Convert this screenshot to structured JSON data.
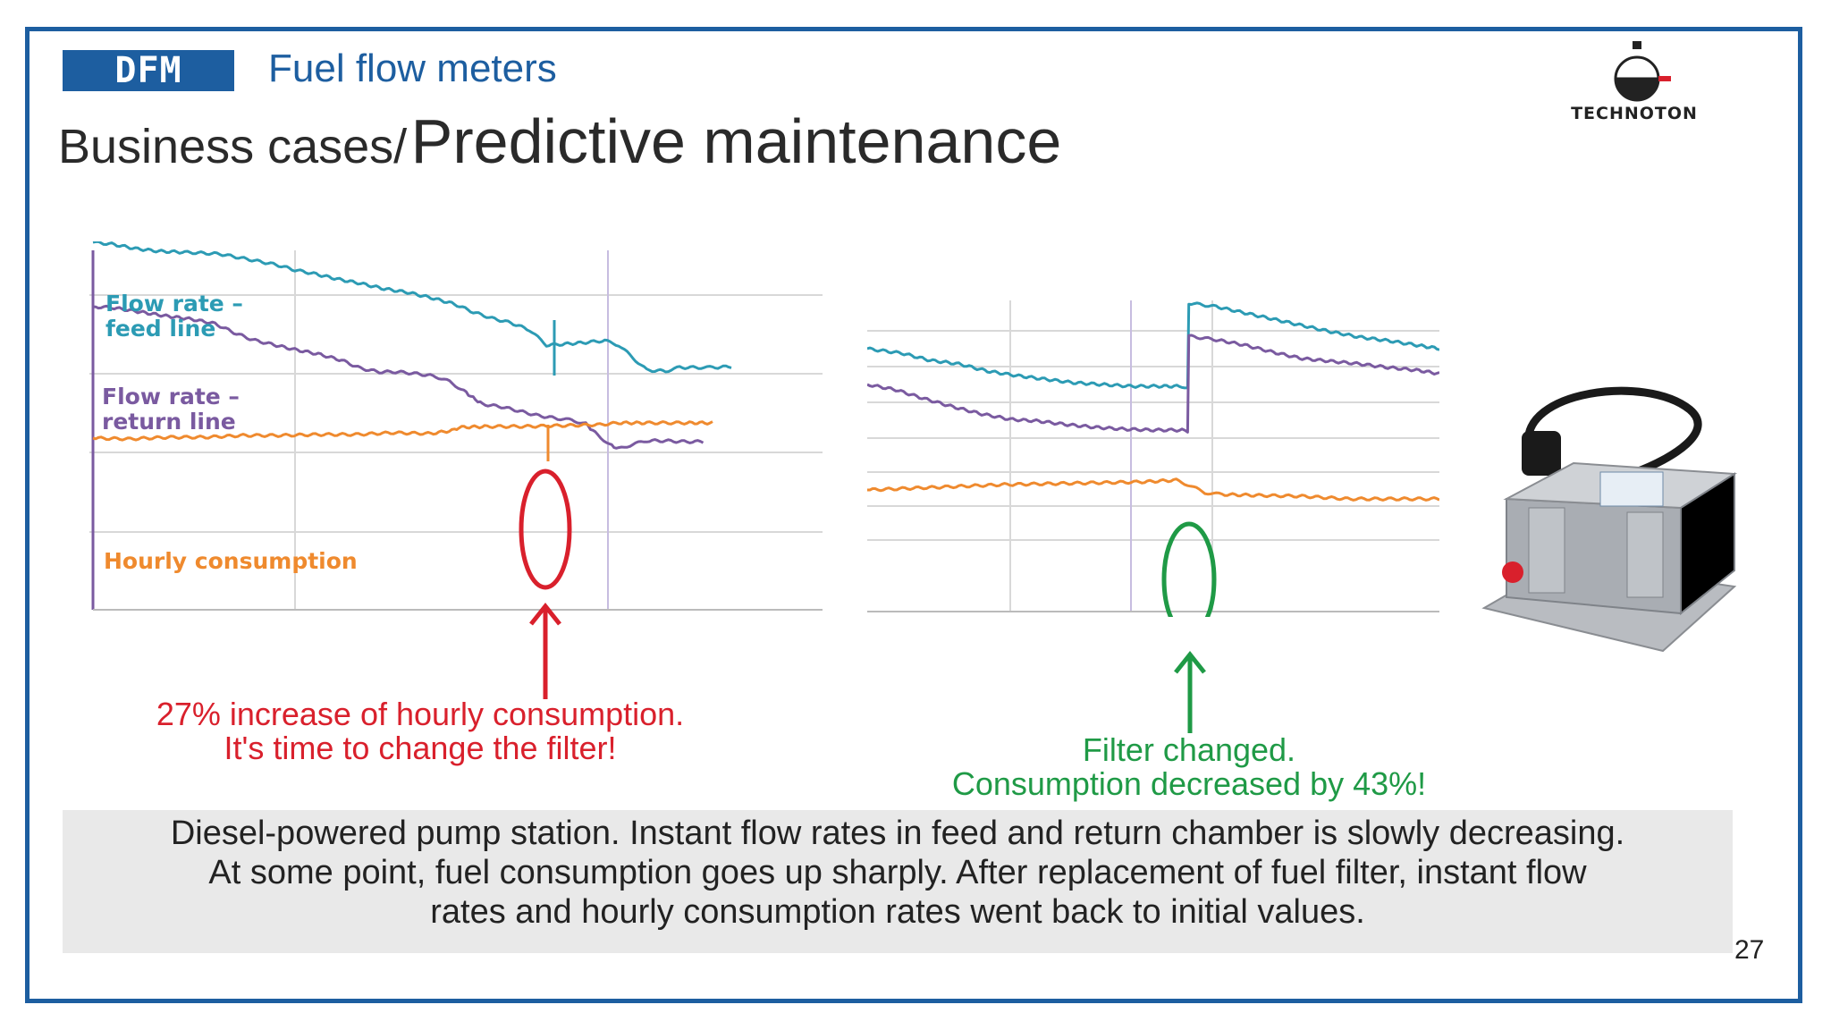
{
  "header": {
    "logo_text": "DFM",
    "subtitle": "Fuel flow meters",
    "title_prefix": "Business cases/",
    "title_main": "Predictive maintenance",
    "brand_name": "TECHNOTON"
  },
  "colors": {
    "feed": "#2c9bb4",
    "return": "#7a5aa0",
    "consumption": "#ef8a2e",
    "red": "#d9202c",
    "green": "#1f9a46",
    "brand_blue": "#1d5ea0"
  },
  "chart_data": [
    {
      "type": "line",
      "title": "",
      "grid": true,
      "series": [
        {
          "name": "Flow rate – feed line",
          "color": "#2c9bb4",
          "values": [
            [
              0,
              231
            ],
            [
              20,
              233
            ],
            [
              45,
              238
            ],
            [
              70,
              241
            ],
            [
              95,
              242
            ],
            [
              115,
              243
            ],
            [
              135,
              244
            ],
            [
              155,
              248
            ],
            [
              175,
              252
            ],
            [
              195,
              256
            ],
            [
              215,
              262
            ],
            [
              235,
              266
            ],
            [
              260,
              272
            ],
            [
              285,
              277
            ],
            [
              310,
              283
            ],
            [
              335,
              287
            ],
            [
              360,
              293
            ],
            [
              385,
              300
            ],
            [
              405,
              309
            ],
            [
              425,
              316
            ],
            [
              445,
              321
            ],
            [
              465,
              329
            ],
            [
              483,
              346
            ],
            [
              500,
              345
            ],
            [
              525,
              343
            ],
            [
              545,
              341
            ],
            [
              560,
              346
            ],
            [
              575,
              360
            ],
            [
              590,
              374
            ],
            [
              610,
              375
            ],
            [
              625,
              371
            ],
            [
              645,
              371
            ],
            [
              660,
              371
            ],
            [
              680,
              370
            ]
          ]
        },
        {
          "name": "Flow rate – return line",
          "color": "#7a5aa0",
          "values": [
            [
              0,
              303
            ],
            [
              20,
              304
            ],
            [
              45,
              308
            ],
            [
              75,
              313
            ],
            [
              105,
              317
            ],
            [
              130,
              322
            ],
            [
              150,
              332
            ],
            [
              170,
              340
            ],
            [
              190,
              345
            ],
            [
              215,
              351
            ],
            [
              240,
              356
            ],
            [
              265,
              363
            ],
            [
              285,
              372
            ],
            [
              305,
              376
            ],
            [
              325,
              376
            ],
            [
              345,
              378
            ],
            [
              365,
              381
            ],
            [
              380,
              387
            ],
            [
              395,
              397
            ],
            [
              405,
              405
            ],
            [
              415,
              412
            ],
            [
              435,
              415
            ],
            [
              455,
              420
            ],
            [
              475,
              425
            ],
            [
              495,
              428
            ],
            [
              510,
              430
            ],
            [
              525,
              434
            ],
            [
              535,
              444
            ],
            [
              550,
              457
            ],
            [
              560,
              462
            ],
            [
              575,
              457
            ],
            [
              590,
              453
            ],
            [
              610,
              453
            ],
            [
              630,
              454
            ],
            [
              650,
              454
            ]
          ]
        },
        {
          "name": "Hourly consumption",
          "color": "#ef8a2e",
          "values": [
            [
              0,
              450
            ],
            [
              40,
              451
            ],
            [
              80,
              449
            ],
            [
              120,
              449
            ],
            [
              160,
              447
            ],
            [
              200,
              447
            ],
            [
              240,
              446
            ],
            [
              280,
              446
            ],
            [
              320,
              444
            ],
            [
              360,
              445
            ],
            [
              385,
              441
            ],
            [
              390,
              438
            ],
            [
              420,
              437
            ],
            [
              460,
              437
            ],
            [
              500,
              436
            ],
            [
              540,
              435
            ],
            [
              560,
              433
            ],
            [
              590,
              433
            ],
            [
              630,
              433
            ],
            [
              660,
              433
            ]
          ]
        }
      ]
    },
    {
      "type": "line",
      "title": "",
      "grid": true,
      "series": [
        {
          "name": "",
          "color": "#2c9bb4",
          "values": [
            [
              0,
              326
            ],
            [
              30,
              331
            ],
            [
              55,
              339
            ],
            [
              80,
              343
            ],
            [
              105,
              351
            ],
            [
              130,
              356
            ],
            [
              155,
              360
            ],
            [
              180,
              364
            ],
            [
              205,
              366
            ],
            [
              230,
              368
            ],
            [
              255,
              368
            ],
            [
              275,
              368
            ],
            [
              280,
              370
            ],
            [
              281,
              275
            ],
            [
              305,
              279
            ],
            [
              330,
              286
            ],
            [
              355,
              293
            ],
            [
              380,
              300
            ],
            [
              405,
              307
            ],
            [
              430,
              313
            ],
            [
              455,
              317
            ],
            [
              480,
              322
            ],
            [
              500,
              326
            ]
          ]
        },
        {
          "name": "",
          "color": "#7a5aa0",
          "values": [
            [
              0,
              366
            ],
            [
              25,
              372
            ],
            [
              50,
              382
            ],
            [
              75,
              391
            ],
            [
              100,
              399
            ],
            [
              125,
              405
            ],
            [
              150,
              407
            ],
            [
              175,
              411
            ],
            [
              200,
              414
            ],
            [
              225,
              416
            ],
            [
              250,
              417
            ],
            [
              275,
              417
            ],
            [
              280,
              420
            ],
            [
              281,
              312
            ],
            [
              305,
              316
            ],
            [
              330,
              322
            ],
            [
              355,
              330
            ],
            [
              380,
              337
            ],
            [
              405,
              340
            ],
            [
              430,
              343
            ],
            [
              455,
              347
            ],
            [
              480,
              350
            ],
            [
              500,
              354
            ]
          ]
        },
        {
          "name": "",
          "color": "#ef8a2e",
          "values": [
            [
              0,
              484
            ],
            [
              40,
              482
            ],
            [
              80,
              480
            ],
            [
              120,
              478
            ],
            [
              160,
              477
            ],
            [
              200,
              476
            ],
            [
              240,
              475
            ],
            [
              270,
              473
            ],
            [
              280,
              478
            ],
            [
              295,
              487
            ],
            [
              310,
              489
            ],
            [
              340,
              490
            ],
            [
              380,
              491
            ],
            [
              420,
              494
            ],
            [
              460,
              494
            ],
            [
              500,
              494
            ]
          ]
        }
      ]
    }
  ],
  "labels": {
    "feed": "Flow rate –\nfeed line",
    "feed_line1": "Flow rate –",
    "feed_line2": "feed line",
    "return_line1": "Flow rate –",
    "return_line2": "return line",
    "consumption": "Hourly consumption"
  },
  "annotations": {
    "red_line1": "27% increase of hourly consumption.",
    "red_line2": "It's time to change the filter!",
    "green_line1": "Filter changed.",
    "green_line2": "Consumption decreased by 43%!"
  },
  "caption": {
    "line1": "Diesel-powered pump station. Instant flow rates in feed and return chamber is slowly decreasing.",
    "line2": "At some point, fuel consumption goes up sharply.  After replacement of fuel filter, instant flow",
    "line3": "rates and hourly consumption rates went back to initial values."
  },
  "page_number": "27"
}
